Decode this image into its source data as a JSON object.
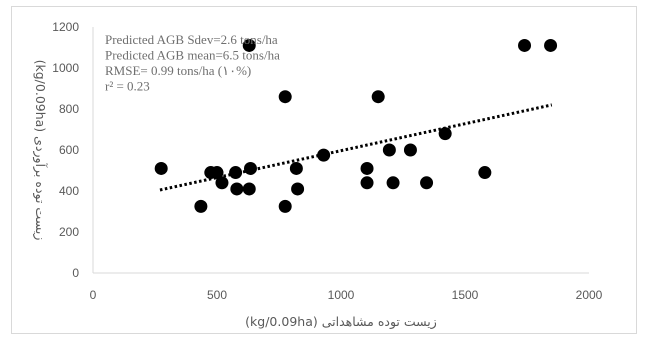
{
  "chart_data": {
    "type": "scatter",
    "xlabel": "(kg/0.09ha) زیست توده مشاهداتی",
    "ylabel": "(kg/0.09ha) زیست توده برآوردی",
    "xlim": [
      0,
      2000
    ],
    "ylim": [
      0,
      1200
    ],
    "x_ticks": [
      "0",
      "500",
      "1000",
      "1500",
      "2000"
    ],
    "y_ticks": [
      "0",
      "200",
      "400",
      "600",
      "800",
      "1000",
      "1200"
    ],
    "grid": false,
    "legend": "none",
    "marker_color": "#000000",
    "points": [
      {
        "x": 275,
        "y": 510
      },
      {
        "x": 435,
        "y": 325
      },
      {
        "x": 475,
        "y": 490
      },
      {
        "x": 500,
        "y": 490
      },
      {
        "x": 520,
        "y": 440
      },
      {
        "x": 575,
        "y": 490
      },
      {
        "x": 580,
        "y": 410
      },
      {
        "x": 630,
        "y": 410
      },
      {
        "x": 635,
        "y": 510
      },
      {
        "x": 630,
        "y": 1110
      },
      {
        "x": 775,
        "y": 860
      },
      {
        "x": 775,
        "y": 325
      },
      {
        "x": 820,
        "y": 510
      },
      {
        "x": 825,
        "y": 410
      },
      {
        "x": 930,
        "y": 575
      },
      {
        "x": 1105,
        "y": 510
      },
      {
        "x": 1105,
        "y": 440
      },
      {
        "x": 1150,
        "y": 860
      },
      {
        "x": 1195,
        "y": 600
      },
      {
        "x": 1210,
        "y": 440
      },
      {
        "x": 1280,
        "y": 600
      },
      {
        "x": 1345,
        "y": 440
      },
      {
        "x": 1420,
        "y": 680
      },
      {
        "x": 1580,
        "y": 490
      },
      {
        "x": 1740,
        "y": 1110
      },
      {
        "x": 1845,
        "y": 1110
      }
    ],
    "trendline": {
      "style": "dotted",
      "color": "#000000",
      "x": [
        270,
        1850
      ],
      "y": [
        405,
        820
      ]
    },
    "annotations": [
      "Predicted AGB Sdev=2.6 tons/ha",
      "Predicted AGB mean=6.5 tons/ha",
      "RMSE= 0.99 tons/ha (۱۰%)",
      "r² = 0.23"
    ]
  }
}
